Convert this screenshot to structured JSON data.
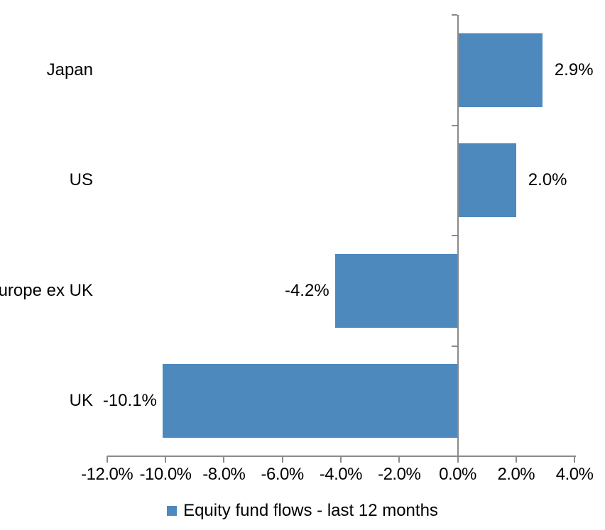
{
  "chart_data": {
    "type": "bar",
    "orientation": "horizontal",
    "title": "",
    "categories": [
      "Japan",
      "US",
      "Europe ex UK",
      "UK"
    ],
    "series": [
      {
        "name": "Equity fund flows - last 12 months",
        "values": [
          2.9,
          2.0,
          -4.2,
          -10.1
        ],
        "data_labels": [
          "2.9%",
          "2.0%",
          "-4.2%",
          "-10.1%"
        ]
      }
    ],
    "xlabel": "",
    "ylabel": "",
    "xlim": [
      -12,
      4
    ],
    "x_ticks": [
      -12,
      -10,
      -8,
      -6,
      -4,
      -2,
      0,
      2,
      4
    ],
    "x_tick_labels": [
      "-12.0%",
      "-10.0%",
      "-8.0%",
      "-6.0%",
      "-4.0%",
      "-2.0%",
      "0.0%",
      "2.0%",
      "4.0%"
    ],
    "grid": "off",
    "legend_position": "bottom",
    "bar_color": "#4E89BE",
    "axis_color": "#8A8A8A",
    "text_color": "#000000"
  },
  "legend": {
    "label": "Equity fund flows - last 12 months"
  }
}
